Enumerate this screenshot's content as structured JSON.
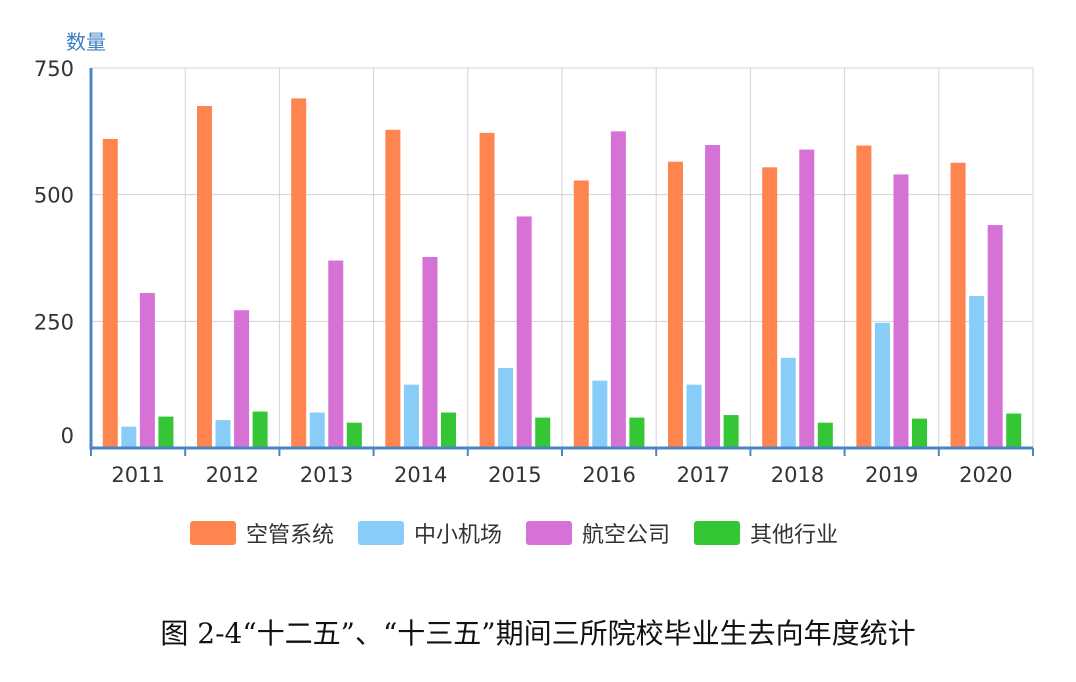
{
  "chart_data": {
    "type": "bar",
    "ylabel": "数量",
    "ylim": [
      0,
      750
    ],
    "yticks": [
      0,
      250,
      500,
      750
    ],
    "categories": [
      "2011",
      "2012",
      "2013",
      "2014",
      "2015",
      "2016",
      "2017",
      "2018",
      "2019",
      "2020"
    ],
    "series": [
      {
        "name": "空管系统",
        "color": "#ff8550",
        "values": [
          610,
          675,
          690,
          628,
          622,
          528,
          565,
          554,
          597,
          563
        ]
      },
      {
        "name": "中小机场",
        "color": "#88ccf8",
        "values": [
          42,
          55,
          70,
          125,
          158,
          133,
          125,
          178,
          247,
          300
        ]
      },
      {
        "name": "航空公司",
        "color": "#d672d6",
        "values": [
          306,
          272,
          370,
          377,
          457,
          625,
          598,
          589,
          540,
          440
        ]
      },
      {
        "name": "其他行业",
        "color": "#34c634",
        "values": [
          62,
          72,
          50,
          70,
          60,
          60,
          65,
          50,
          58,
          68
        ]
      }
    ],
    "grid": true,
    "legend_position": "bottom"
  },
  "caption": "图 2-4“十二五”、“十三五”期间三所院校毕业生去向年度统计",
  "colors": {
    "axis": "#4a85c4",
    "grid": "#d3d3d3",
    "tick_text": "#333333"
  }
}
